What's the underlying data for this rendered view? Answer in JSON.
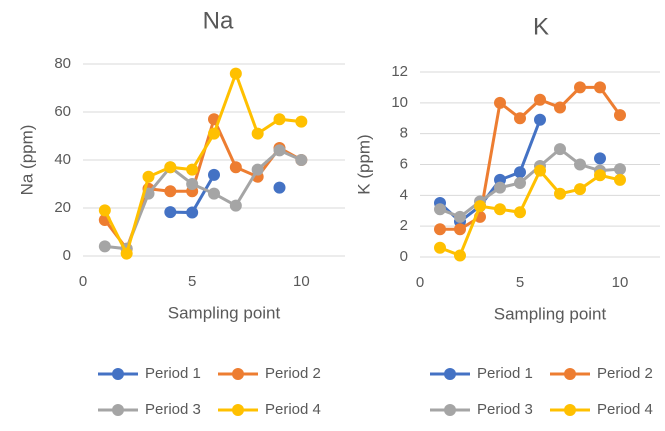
{
  "chart_data": [
    {
      "type": "line",
      "title": "Na",
      "x_label": "Sampling point",
      "y_label": "Na (ppm)",
      "x": [
        1,
        2,
        3,
        4,
        5,
        6,
        7,
        8,
        9,
        10
      ],
      "xlim": [
        0,
        12
      ],
      "xticks": [
        0,
        5,
        10
      ],
      "ylim": [
        0,
        80
      ],
      "yticks": [
        0,
        20,
        40,
        60,
        80
      ],
      "grid": true,
      "legend": "bottom",
      "series": [
        {
          "name": "Period 1",
          "color": "#4472c4",
          "values": [
            null,
            null,
            null,
            18.3,
            18.1,
            33.8,
            null,
            null,
            28.5,
            null
          ]
        },
        {
          "name": "Period 2",
          "color": "#ed7d31",
          "values": [
            15,
            3,
            28,
            27,
            27,
            57,
            37,
            33,
            45,
            40
          ]
        },
        {
          "name": "Period 3",
          "color": "#a5a5a5",
          "values": [
            4,
            3,
            26,
            37,
            30,
            26,
            21,
            36,
            44,
            40
          ]
        },
        {
          "name": "Period 4",
          "color": "#ffc000",
          "values": [
            19,
            1,
            33,
            37,
            36,
            51,
            76,
            51,
            57,
            56
          ]
        }
      ]
    },
    {
      "type": "line",
      "title": "K",
      "x_label": "Sampling point",
      "y_label": "K (ppm)",
      "x": [
        1,
        2,
        3,
        4,
        5,
        6,
        7,
        8,
        9,
        10
      ],
      "xlim": [
        0,
        12
      ],
      "xticks": [
        0,
        5,
        10
      ],
      "ylim": [
        0,
        12
      ],
      "yticks": [
        0,
        2,
        4,
        6,
        8,
        10,
        12
      ],
      "grid": true,
      "legend": "bottom",
      "series": [
        {
          "name": "Period 1",
          "color": "#4472c4",
          "values": [
            3.5,
            2.3,
            3.3,
            5.0,
            5.5,
            8.9,
            null,
            null,
            6.4,
            null
          ]
        },
        {
          "name": "Period 2",
          "color": "#ed7d31",
          "values": [
            1.8,
            1.8,
            2.6,
            10,
            9,
            10.2,
            9.7,
            11,
            11,
            9.2
          ]
        },
        {
          "name": "Period 3",
          "color": "#a5a5a5",
          "values": [
            3.1,
            2.6,
            3.6,
            4.5,
            4.8,
            5.9,
            7.0,
            6.0,
            5.6,
            5.7
          ]
        },
        {
          "name": "Period 4",
          "color": "#ffc000",
          "values": [
            0.6,
            0.1,
            3.3,
            3.1,
            2.9,
            5.6,
            4.1,
            4.4,
            5.3,
            5.0
          ]
        }
      ]
    }
  ]
}
